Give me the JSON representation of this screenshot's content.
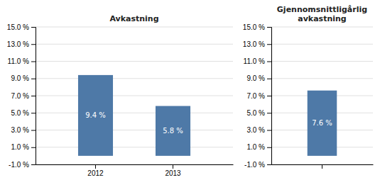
{
  "chart_data": [
    {
      "type": "bar",
      "title": "Avkastning",
      "categories": [
        "2012",
        "2013"
      ],
      "values": [
        9.4,
        5.8
      ],
      "value_labels": [
        "9.4 %",
        "5.8 %"
      ],
      "data_labels": true,
      "ylim": [
        -1.0,
        15.0
      ],
      "yticks": [
        {
          "value": -1.0,
          "label": "-1.0 %"
        },
        {
          "value": 1.0,
          "label": "1.0 %"
        },
        {
          "value": 3.0,
          "label": "3.0 %"
        },
        {
          "value": 5.0,
          "label": "5.0 %"
        },
        {
          "value": 7.0,
          "label": "7.0 %"
        },
        {
          "value": 9.0,
          "label": "9.0 %"
        },
        {
          "value": 11.0,
          "label": "11.0 %"
        },
        {
          "value": 13.0,
          "label": "13.0 %"
        },
        {
          "value": 15.0,
          "label": "15.0 %"
        }
      ],
      "grid": true
    },
    {
      "type": "bar",
      "title": "Gjennomsnittligårlig\navkastning",
      "categories": [
        null
      ],
      "values": [
        7.6
      ],
      "value_labels": [
        "7.6 %"
      ],
      "data_labels": true,
      "ylim": [
        -1.0,
        15.0
      ],
      "yticks": [
        {
          "value": -1.0,
          "label": "-1.0 %"
        },
        {
          "value": 1.0,
          "label": "1.0 %"
        },
        {
          "value": 3.0,
          "label": "3.0 %"
        },
        {
          "value": 5.0,
          "label": "5.0 %"
        },
        {
          "value": 7.0,
          "label": "7.0 %"
        },
        {
          "value": 9.0,
          "label": "9.0 %"
        },
        {
          "value": 11.0,
          "label": "11.0 %"
        },
        {
          "value": 13.0,
          "label": "13.0 %"
        },
        {
          "value": 15.0,
          "label": "15.0 %"
        }
      ],
      "grid": true
    }
  ]
}
